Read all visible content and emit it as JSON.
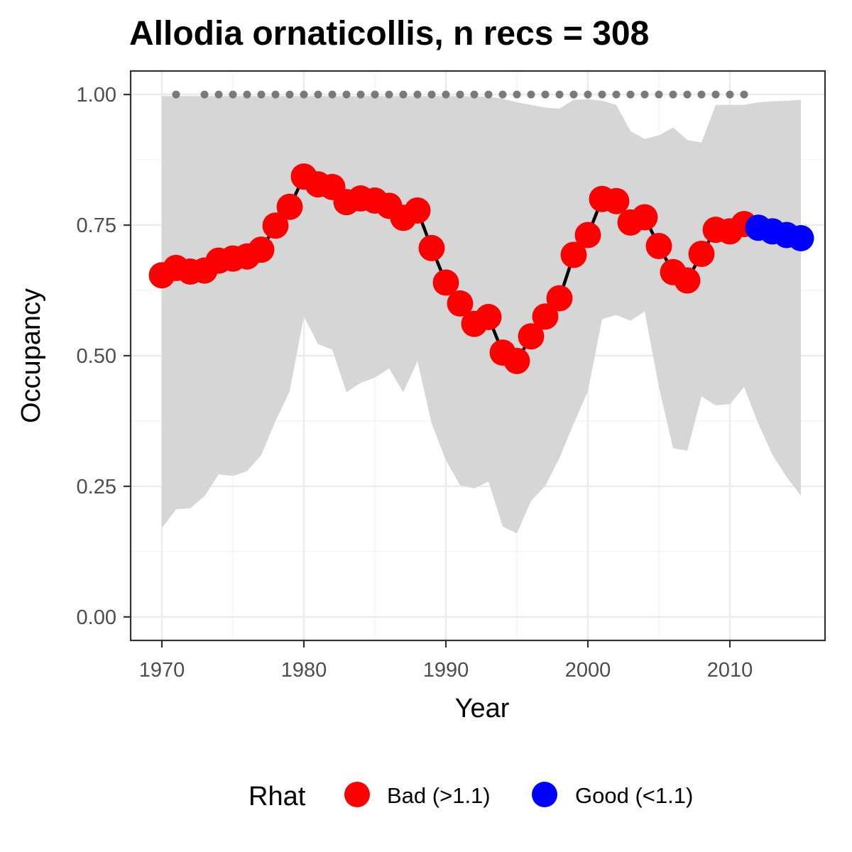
{
  "chart_data": {
    "type": "line",
    "title": "Allodia ornaticollis, n recs = 308",
    "xlabel": "Year",
    "ylabel": "Occupancy",
    "xlim": [
      1967.8,
      2016.7
    ],
    "ylim": [
      -0.045,
      1.045
    ],
    "x_ticks": [
      1970,
      1980,
      1990,
      2000,
      2010
    ],
    "x_tick_labels": [
      "1970",
      "1980",
      "1990",
      "2000",
      "2010"
    ],
    "y_ticks": [
      0,
      0.25,
      0.5,
      0.75,
      1.0
    ],
    "y_tick_labels": [
      "0.00",
      "0.25",
      "0.50",
      "0.75",
      "1.00"
    ],
    "grid": true,
    "legend": {
      "title": "Rhat",
      "position": "bottom",
      "items": [
        {
          "label": "Bad (>1.1)",
          "color": "#ff0000"
        },
        {
          "label": "Good (<1.1)",
          "color": "#0000ff"
        }
      ]
    },
    "colors": {
      "bad": "#ff0000",
      "good": "#0000ff",
      "ribbon": "#d6d6d6",
      "line": "#000000",
      "records": "#7a7a7a"
    },
    "years": [
      1970,
      1971,
      1972,
      1973,
      1974,
      1975,
      1976,
      1977,
      1978,
      1979,
      1980,
      1981,
      1982,
      1983,
      1984,
      1985,
      1986,
      1987,
      1988,
      1989,
      1990,
      1991,
      1992,
      1993,
      1994,
      1995,
      1996,
      1997,
      1998,
      1999,
      2000,
      2001,
      2002,
      2003,
      2004,
      2005,
      2006,
      2007,
      2008,
      2009,
      2010,
      2011,
      2012,
      2013,
      2014,
      2015
    ],
    "occupancy": [
      0.654,
      0.668,
      0.661,
      0.663,
      0.682,
      0.686,
      0.69,
      0.703,
      0.749,
      0.785,
      0.843,
      0.828,
      0.823,
      0.794,
      0.801,
      0.797,
      0.787,
      0.764,
      0.778,
      0.706,
      0.64,
      0.6,
      0.561,
      0.574,
      0.506,
      0.49,
      0.537,
      0.575,
      0.61,
      0.693,
      0.731,
      0.8,
      0.796,
      0.755,
      0.765,
      0.71,
      0.66,
      0.644,
      0.695,
      0.741,
      0.738,
      0.752,
      0.745,
      0.738,
      0.731,
      0.725
    ],
    "lower": [
      0.17,
      0.206,
      0.208,
      0.231,
      0.273,
      0.27,
      0.279,
      0.31,
      0.375,
      0.432,
      0.575,
      0.522,
      0.512,
      0.43,
      0.448,
      0.458,
      0.476,
      0.43,
      0.49,
      0.37,
      0.3,
      0.252,
      0.246,
      0.259,
      0.173,
      0.16,
      0.222,
      0.251,
      0.304,
      0.37,
      0.432,
      0.57,
      0.578,
      0.567,
      0.585,
      0.44,
      0.323,
      0.318,
      0.422,
      0.405,
      0.407,
      0.44,
      0.37,
      0.31,
      0.268,
      0.232
    ],
    "upper": [
      0.997,
      0.997,
      0.997,
      0.997,
      0.997,
      0.997,
      0.997,
      0.997,
      0.997,
      0.997,
      0.997,
      0.997,
      0.997,
      0.997,
      0.997,
      0.997,
      0.997,
      0.997,
      0.997,
      0.997,
      0.997,
      0.997,
      0.996,
      0.996,
      0.992,
      0.985,
      0.98,
      0.975,
      0.973,
      0.99,
      0.991,
      0.988,
      0.98,
      0.93,
      0.915,
      0.922,
      0.937,
      0.913,
      0.908,
      0.98,
      0.98,
      0.98,
      0.985,
      0.987,
      0.988,
      0.99
    ],
    "rhat": [
      "Bad",
      "Bad",
      "Bad",
      "Bad",
      "Bad",
      "Bad",
      "Bad",
      "Bad",
      "Bad",
      "Bad",
      "Bad",
      "Bad",
      "Bad",
      "Bad",
      "Bad",
      "Bad",
      "Bad",
      "Bad",
      "Bad",
      "Bad",
      "Bad",
      "Bad",
      "Bad",
      "Bad",
      "Bad",
      "Bad",
      "Bad",
      "Bad",
      "Bad",
      "Bad",
      "Bad",
      "Bad",
      "Bad",
      "Bad",
      "Bad",
      "Bad",
      "Bad",
      "Bad",
      "Bad",
      "Bad",
      "Bad",
      "Bad",
      "Good",
      "Good",
      "Good",
      "Good"
    ],
    "record_years": [
      1971,
      1973,
      1974,
      1975,
      1976,
      1977,
      1978,
      1979,
      1980,
      1981,
      1982,
      1983,
      1984,
      1985,
      1986,
      1987,
      1988,
      1989,
      1990,
      1991,
      1992,
      1993,
      1994,
      1995,
      1996,
      1997,
      1998,
      1999,
      2000,
      2001,
      2002,
      2003,
      2004,
      2005,
      2006,
      2007,
      2008,
      2009,
      2010,
      2011
    ],
    "record_level": 1.0
  }
}
